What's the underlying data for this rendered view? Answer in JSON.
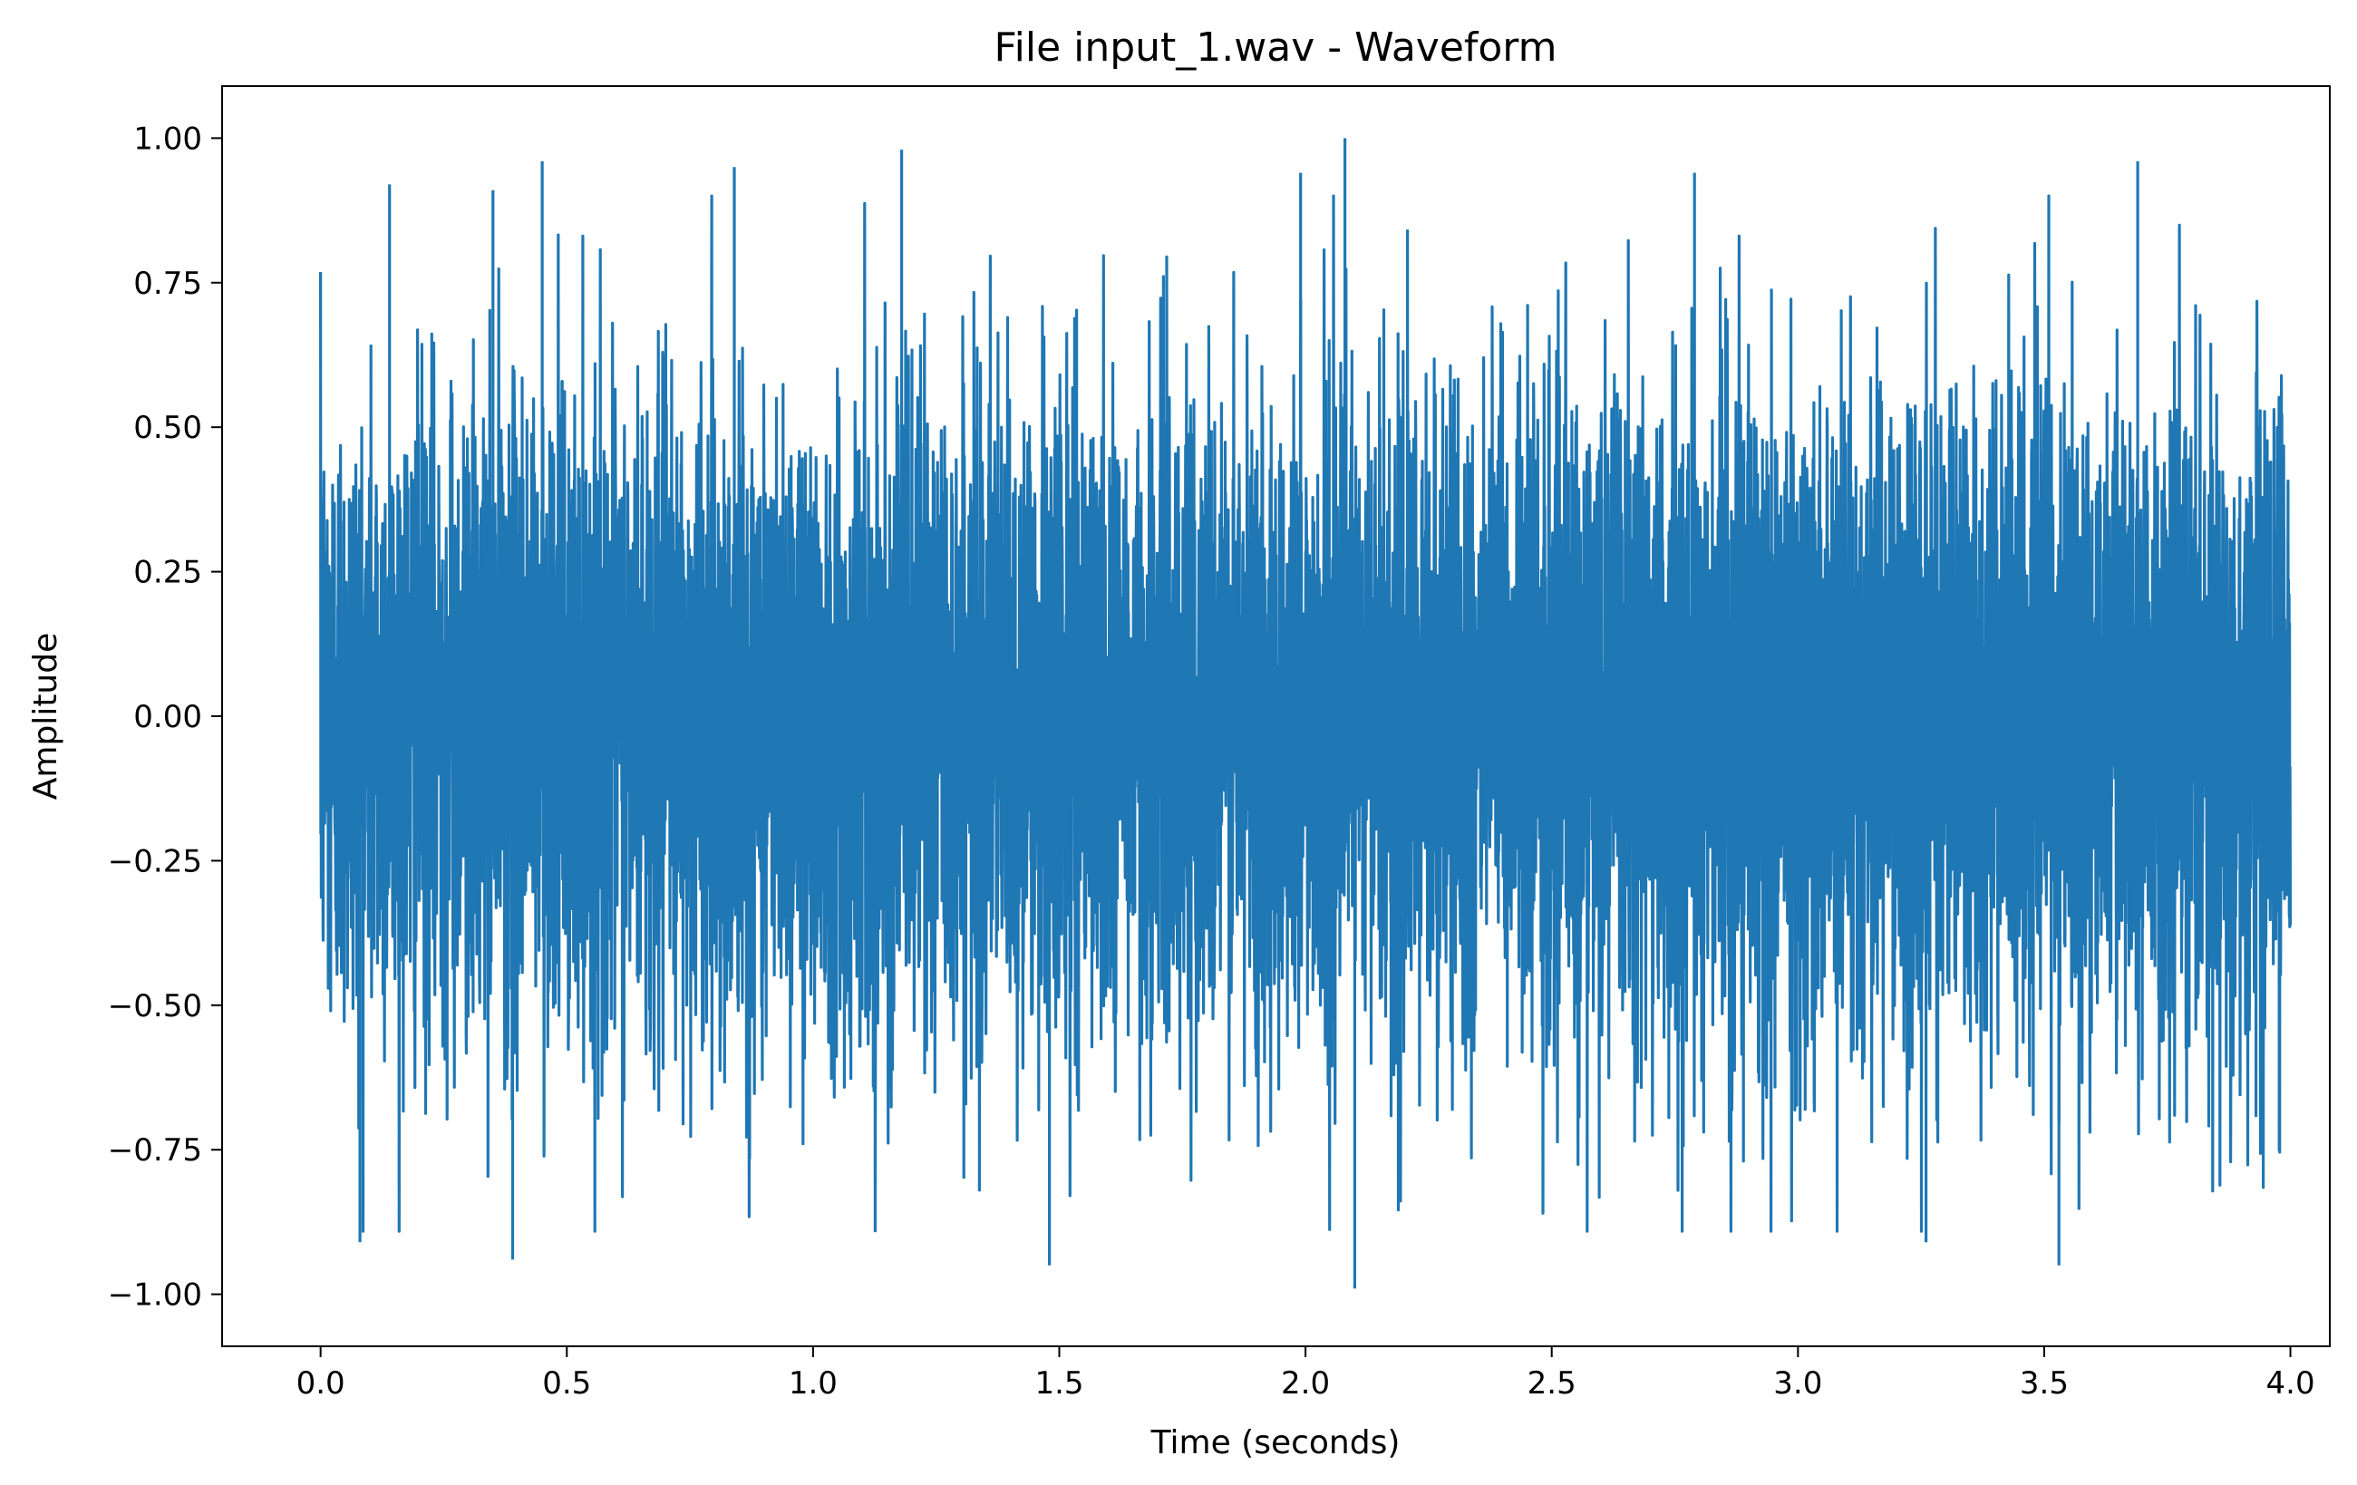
{
  "chart_data": {
    "type": "line",
    "title": "File input_1.wav - Waveform",
    "xlabel": "Time (seconds)",
    "ylabel": "Amplitude",
    "xlim": [
      -0.2,
      4.08
    ],
    "ylim": [
      -1.09,
      1.09
    ],
    "x_ticks": [
      0.0,
      0.5,
      1.0,
      1.5,
      2.0,
      2.5,
      3.0,
      3.5,
      4.0
    ],
    "x_tick_labels": [
      "0.0",
      "0.5",
      "1.0",
      "1.5",
      "2.0",
      "2.5",
      "3.0",
      "3.5",
      "4.0"
    ],
    "y_ticks": [
      1.0,
      0.75,
      0.5,
      0.25,
      0.0,
      -0.25,
      -0.5,
      -0.75,
      -1.0
    ],
    "y_tick_labels": [
      "1.00",
      "0.75",
      "0.50",
      "0.25",
      "0.00",
      "−0.25",
      "−0.50",
      "−0.75",
      "−1.00"
    ],
    "grid": false,
    "legend": "none",
    "series": [
      {
        "color": "#1f77b4",
        "x_range": [
          0.0,
          4.0
        ],
        "amplitude_max": 1.0,
        "amplitude_min": -0.99,
        "typical_envelope": [
          -0.72,
          0.72
        ],
        "peaks": [
          {
            "x": 0.14,
            "y": 0.92
          },
          {
            "x": 0.35,
            "y": 0.91
          },
          {
            "x": 0.45,
            "y": 0.96
          },
          {
            "x": 0.84,
            "y": 0.95
          },
          {
            "x": 1.18,
            "y": 0.98
          },
          {
            "x": 1.99,
            "y": 0.94
          },
          {
            "x": 2.08,
            "y": 1.0
          },
          {
            "x": 2.79,
            "y": 0.94
          },
          {
            "x": 3.69,
            "y": 0.96
          },
          {
            "x": 0.08,
            "y": -0.91
          },
          {
            "x": 0.39,
            "y": -0.94
          },
          {
            "x": 1.48,
            "y": -0.95
          },
          {
            "x": 2.1,
            "y": -0.99
          },
          {
            "x": 3.26,
            "y": -0.91
          },
          {
            "x": 3.53,
            "y": -0.95
          }
        ]
      }
    ]
  }
}
